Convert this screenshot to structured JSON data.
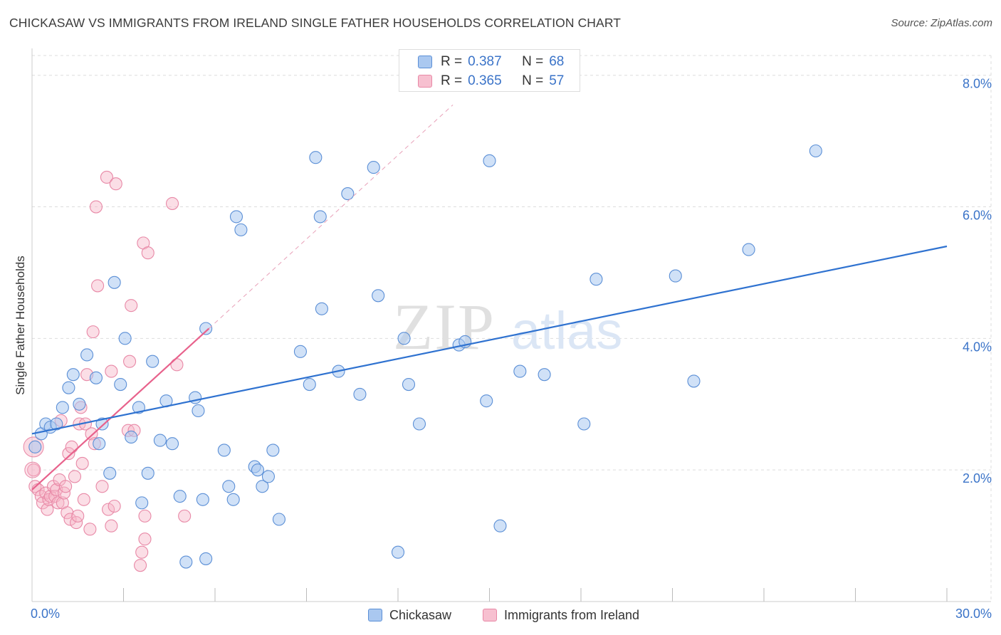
{
  "title": "CHICKASAW VS IMMIGRANTS FROM IRELAND SINGLE FATHER HOUSEHOLDS CORRELATION CHART",
  "source": "Source: ZipAtlas.com",
  "watermark": {
    "zip": "ZIP",
    "atlas": "atlas"
  },
  "colors": {
    "blue_fill": "#aac8f0",
    "blue_stroke": "#5b8fd6",
    "blue_line": "#2f72d0",
    "pink_fill": "#f7b5c8",
    "pink_stroke": "#e888a6",
    "pink_line": "#e8628c",
    "axis_label": "#3a73c8",
    "grid": "#dddddd"
  },
  "stats": [
    {
      "r_label": "R =",
      "r_value": "0.387",
      "n_label": "N =",
      "n_value": "68"
    },
    {
      "r_label": "R =",
      "r_value": "0.365",
      "n_label": "N =",
      "n_value": "57"
    }
  ],
  "legend": [
    {
      "label": "Chickasaw"
    },
    {
      "label": "Immigrants from Ireland"
    }
  ],
  "chart_data": {
    "type": "scatter",
    "title": "CHICKASAW VS IMMIGRANTS FROM IRELAND SINGLE FATHER HOUSEHOLDS CORRELATION CHART",
    "xlabel": "",
    "ylabel": "Single Father Households",
    "xlim": [
      0,
      30
    ],
    "ylim": [
      0,
      8.3
    ],
    "x_tick_labels": [
      {
        "value": 0,
        "label": "0.0%"
      },
      {
        "value": 30,
        "label": "30.0%"
      }
    ],
    "y_ticks": [
      {
        "value": 2,
        "label": "2.0%"
      },
      {
        "value": 4,
        "label": "4.0%"
      },
      {
        "value": 6,
        "label": "6.0%"
      },
      {
        "value": 8,
        "label": "8.0%"
      }
    ],
    "x_minor_ticks": [
      3,
      6,
      9,
      12,
      15,
      18,
      21,
      24,
      27,
      30
    ],
    "series": [
      {
        "name": "Chickasaw",
        "color": "#5b8fd6",
        "r": 0.387,
        "n": 68,
        "trend": {
          "x0": 0,
          "y0": 2.55,
          "x1": 30,
          "y1": 5.4
        },
        "points": [
          [
            0.1,
            2.35
          ],
          [
            0.3,
            2.55
          ],
          [
            0.45,
            2.7
          ],
          [
            0.6,
            2.65
          ],
          [
            0.8,
            2.7
          ],
          [
            1.0,
            2.95
          ],
          [
            1.2,
            3.25
          ],
          [
            1.35,
            3.45
          ],
          [
            1.55,
            3.0
          ],
          [
            1.8,
            3.75
          ],
          [
            2.2,
            2.4
          ],
          [
            2.1,
            3.4
          ],
          [
            2.3,
            2.7
          ],
          [
            2.55,
            1.95
          ],
          [
            2.7,
            4.85
          ],
          [
            2.9,
            3.3
          ],
          [
            3.05,
            4.0
          ],
          [
            3.25,
            2.5
          ],
          [
            3.5,
            2.95
          ],
          [
            3.6,
            1.5
          ],
          [
            3.8,
            1.95
          ],
          [
            3.95,
            3.65
          ],
          [
            4.2,
            2.45
          ],
          [
            4.4,
            3.05
          ],
          [
            4.6,
            2.4
          ],
          [
            4.85,
            1.6
          ],
          [
            5.05,
            0.6
          ],
          [
            5.35,
            3.1
          ],
          [
            5.45,
            2.9
          ],
          [
            5.6,
            1.55
          ],
          [
            5.7,
            4.15
          ],
          [
            5.7,
            0.65
          ],
          [
            6.3,
            2.3
          ],
          [
            6.45,
            1.75
          ],
          [
            6.6,
            1.55
          ],
          [
            6.7,
            5.85
          ],
          [
            6.85,
            5.65
          ],
          [
            7.3,
            2.05
          ],
          [
            7.4,
            2.0
          ],
          [
            7.55,
            1.75
          ],
          [
            7.75,
            1.9
          ],
          [
            7.9,
            2.3
          ],
          [
            8.1,
            1.25
          ],
          [
            8.8,
            3.8
          ],
          [
            9.1,
            3.3
          ],
          [
            9.3,
            6.75
          ],
          [
            9.45,
            5.85
          ],
          [
            9.5,
            4.45
          ],
          [
            10.05,
            3.5
          ],
          [
            10.35,
            6.2
          ],
          [
            10.75,
            3.15
          ],
          [
            11.2,
            6.6
          ],
          [
            11.35,
            4.65
          ],
          [
            12.0,
            0.75
          ],
          [
            12.2,
            4.0
          ],
          [
            12.35,
            3.3
          ],
          [
            12.7,
            2.7
          ],
          [
            14.0,
            3.9
          ],
          [
            14.2,
            3.95
          ],
          [
            14.9,
            3.05
          ],
          [
            15.0,
            6.7
          ],
          [
            15.35,
            1.15
          ],
          [
            16.0,
            3.5
          ],
          [
            16.8,
            3.45
          ],
          [
            18.1,
            2.7
          ],
          [
            18.5,
            4.9
          ],
          [
            21.1,
            4.95
          ],
          [
            21.7,
            3.35
          ],
          [
            23.5,
            5.35
          ],
          [
            25.7,
            6.85
          ]
        ]
      },
      {
        "name": "Immigrants from Ireland",
        "color": "#e888a6",
        "r": 0.365,
        "n": 57,
        "trend": {
          "x0": 0,
          "y0": 1.7,
          "x1": 5.8,
          "y1": 4.15
        },
        "trend_ext": {
          "x0": 5.8,
          "y0": 4.15,
          "x1": 13.8,
          "y1": 7.55
        },
        "points": [
          [
            0.05,
            2.0
          ],
          [
            0.1,
            1.75
          ],
          [
            0.2,
            1.7
          ],
          [
            0.3,
            1.6
          ],
          [
            0.35,
            1.5
          ],
          [
            0.45,
            1.65
          ],
          [
            0.5,
            1.4
          ],
          [
            0.55,
            1.55
          ],
          [
            0.6,
            1.6
          ],
          [
            0.7,
            1.75
          ],
          [
            0.75,
            1.6
          ],
          [
            0.8,
            1.7
          ],
          [
            0.85,
            1.5
          ],
          [
            0.9,
            1.85
          ],
          [
            0.95,
            2.75
          ],
          [
            1.0,
            1.5
          ],
          [
            1.05,
            1.65
          ],
          [
            1.1,
            1.75
          ],
          [
            1.15,
            1.35
          ],
          [
            1.2,
            2.25
          ],
          [
            1.25,
            1.25
          ],
          [
            1.3,
            2.35
          ],
          [
            1.4,
            1.9
          ],
          [
            1.45,
            1.2
          ],
          [
            1.5,
            1.3
          ],
          [
            1.55,
            2.7
          ],
          [
            1.6,
            2.95
          ],
          [
            1.65,
            2.1
          ],
          [
            1.7,
            1.55
          ],
          [
            1.75,
            2.7
          ],
          [
            1.8,
            3.45
          ],
          [
            1.9,
            1.1
          ],
          [
            1.95,
            2.55
          ],
          [
            2.0,
            4.1
          ],
          [
            2.05,
            2.4
          ],
          [
            2.1,
            6.0
          ],
          [
            2.15,
            4.8
          ],
          [
            2.3,
            1.75
          ],
          [
            2.45,
            6.45
          ],
          [
            2.5,
            1.4
          ],
          [
            2.6,
            1.15
          ],
          [
            2.6,
            3.5
          ],
          [
            2.7,
            1.45
          ],
          [
            2.75,
            6.35
          ],
          [
            3.15,
            2.6
          ],
          [
            3.2,
            3.65
          ],
          [
            3.25,
            4.5
          ],
          [
            3.35,
            2.6
          ],
          [
            3.55,
            0.55
          ],
          [
            3.6,
            0.75
          ],
          [
            3.65,
            5.45
          ],
          [
            3.7,
            0.95
          ],
          [
            3.7,
            1.3
          ],
          [
            3.8,
            5.3
          ],
          [
            4.6,
            6.05
          ],
          [
            4.75,
            3.6
          ],
          [
            5.0,
            1.3
          ]
        ]
      }
    ]
  }
}
